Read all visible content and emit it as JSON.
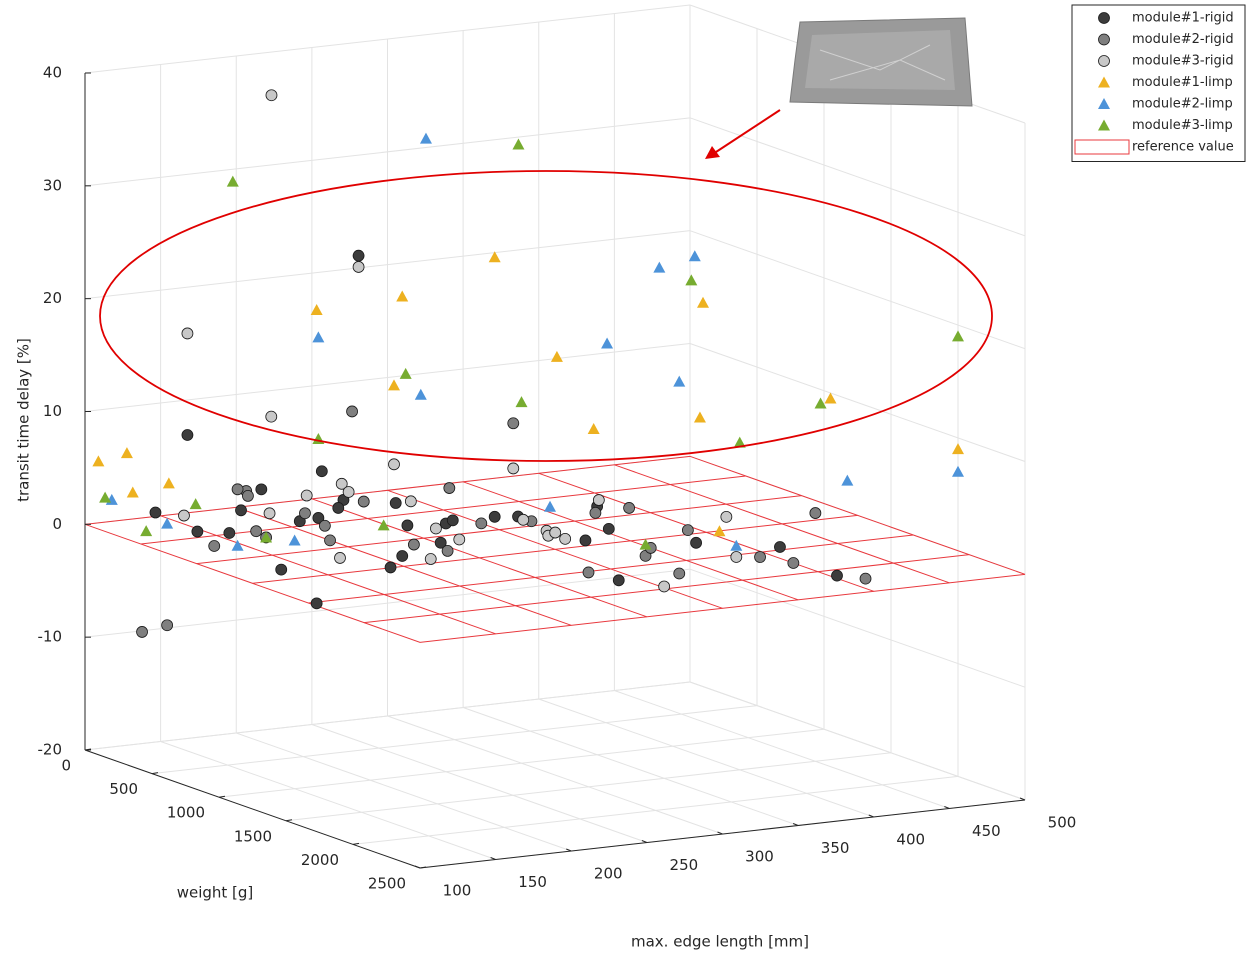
{
  "chart_data": {
    "type": "scatter3d",
    "xlabel": "max. edge length [mm]",
    "ylabel": "weight [g]",
    "zlabel": "transit time delay [%]",
    "xlim": [
      100,
      500
    ],
    "xticks": [
      100,
      150,
      200,
      250,
      300,
      350,
      400,
      450,
      500
    ],
    "ylim": [
      0,
      2500
    ],
    "yticks": [
      0,
      500,
      1000,
      1500,
      2000,
      2500
    ],
    "zlim": [
      -20,
      40
    ],
    "zticks": [
      -20,
      -10,
      0,
      10,
      20,
      30,
      40
    ],
    "grid": true,
    "legend": "top-right",
    "reference_plane": {
      "name": "reference value",
      "z": 0,
      "color": "#e8383d"
    },
    "series": [
      {
        "name": "module#1-rigid",
        "marker": "circle",
        "color": "#3c3c3c",
        "x": [
          120,
          130,
          150,
          160,
          180,
          200,
          210,
          230,
          250,
          260,
          280,
          300,
          320,
          350,
          380,
          400,
          150,
          170,
          190,
          220,
          240,
          270,
          290,
          210,
          340,
          360,
          420,
          150,
          230,
          200
        ],
        "y": [
          300,
          500,
          600,
          400,
          700,
          800,
          500,
          900,
          1000,
          600,
          1200,
          800,
          1500,
          1000,
          1400,
          1800,
          900,
          1100,
          300,
          1300,
          700,
          400,
          600,
          800,
          1200,
          800,
          2000,
          200,
          300,
          600
        ],
        "z": [
          2,
          1,
          3,
          0,
          2,
          4,
          1,
          -1,
          2,
          0,
          3,
          1,
          -2,
          2,
          0,
          1,
          -1,
          5,
          3,
          2,
          -3,
          1,
          0,
          25.5,
          1,
          -2,
          -1,
          8,
          4,
          -6
        ]
      },
      {
        "name": "module#2-rigid",
        "marker": "circle",
        "color": "#7f7f7f",
        "x": [
          110,
          120,
          140,
          160,
          180,
          200,
          220,
          240,
          260,
          280,
          300,
          320,
          340,
          360,
          380,
          400,
          430,
          450,
          130,
          170,
          250,
          330,
          210,
          190,
          270,
          350,
          410,
          440,
          150,
          300
        ],
        "y": [
          500,
          200,
          900,
          600,
          300,
          700,
          1100,
          500,
          900,
          1300,
          700,
          1700,
          1100,
          1500,
          900,
          1900,
          2100,
          1500,
          800,
          1000,
          300,
          600,
          400,
          200,
          800,
          1400,
          1000,
          1200,
          400,
          1500
        ],
        "z": [
          -7,
          -9,
          2,
          1,
          3,
          0,
          1,
          2,
          -1,
          3,
          0,
          1,
          2,
          -2,
          1,
          0,
          -1,
          2,
          6,
          3,
          9,
          8,
          1,
          2,
          4,
          0,
          -1,
          -3,
          -1,
          -1
        ]
      },
      {
        "name": "module#3-rigid",
        "marker": "circle",
        "color": "#c8c8c8",
        "x": [
          210,
          150,
          210,
          130,
          170,
          190,
          230,
          250,
          270,
          290,
          310,
          330,
          350,
          180,
          220,
          260,
          300,
          340,
          380,
          400,
          160,
          240,
          280,
          320,
          360
        ],
        "y": [
          150,
          200,
          800,
          400,
          600,
          900,
          500,
          1100,
          700,
          1300,
          900,
          600,
          1500,
          1000,
          300,
          500,
          1200,
          800,
          1700,
          1400,
          700,
          1000,
          400,
          1100,
          900
        ],
        "z": [
          37,
          17,
          24.5,
          2,
          11,
          6,
          3,
          1,
          0,
          2,
          1,
          4,
          -3,
          0,
          2,
          5,
          1,
          -1,
          0,
          2,
          3,
          -1,
          1,
          0,
          2
        ]
      },
      {
        "name": "module#1-limp",
        "marker": "triangle",
        "color": "#edb120",
        "x": [
          100,
          105,
          110,
          120,
          200,
          230,
          260,
          300,
          330,
          350,
          420,
          460,
          480,
          500,
          360
        ],
        "y": [
          100,
          300,
          200,
          400,
          600,
          900,
          500,
          800,
          1200,
          700,
          1000,
          1500,
          300,
          2000,
          1800
        ],
        "z": [
          6,
          4,
          7,
          5,
          20,
          22,
          12,
          24,
          10,
          14,
          19,
          12,
          5,
          9,
          3
        ]
      },
      {
        "name": "module#2-limp",
        "marker": "triangle",
        "color": "#4d93d9",
        "x": [
          100,
          110,
          130,
          210,
          260,
          290,
          330,
          360,
          400,
          450,
          480,
          500,
          150,
          310,
          380
        ],
        "y": [
          200,
          500,
          800,
          500,
          700,
          400,
          1300,
          1500,
          900,
          600,
          1400,
          2000,
          1000,
          1100,
          1700
        ],
        "z": [
          3,
          2,
          1,
          17,
          12,
          33,
          18,
          15,
          22,
          21,
          4,
          7,
          2,
          3,
          1
        ]
      },
      {
        "name": "module#3-limp",
        "marker": "triangle",
        "color": "#77ac30",
        "x": [
          100,
          105,
          120,
          140,
          180,
          210,
          250,
          300,
          360,
          400,
          430,
          480,
          500,
          200,
          320
        ],
        "y": [
          150,
          400,
          600,
          900,
          200,
          500,
          700,
          1000,
          300,
          1500,
          800,
          1200,
          2000,
          1100,
          1700
        ],
        "z": [
          3,
          1,
          4,
          2,
          30,
          8,
          14,
          12,
          31,
          9,
          20,
          10,
          19,
          3,
          2
        ]
      }
    ]
  }
}
